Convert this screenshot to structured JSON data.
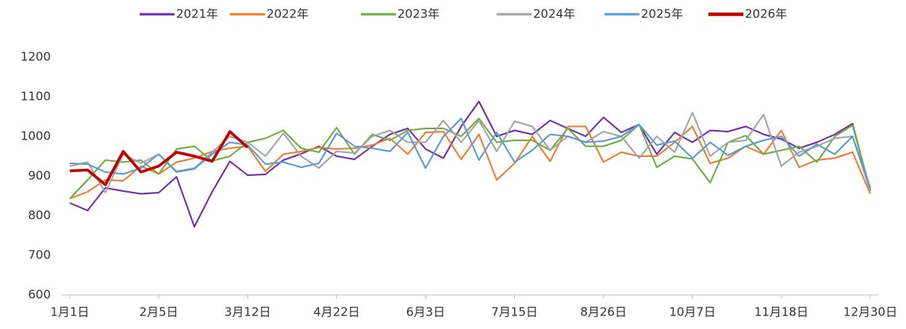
{
  "chart_data": {
    "type": "line",
    "categories": [
      "1月1日",
      null,
      null,
      null,
      null,
      "2月5日",
      null,
      null,
      null,
      null,
      "3月12日",
      null,
      null,
      null,
      null,
      "4月22日",
      null,
      null,
      null,
      null,
      "6月3日",
      null,
      null,
      null,
      null,
      "7月15日",
      null,
      null,
      null,
      null,
      "8月26日",
      null,
      null,
      null,
      null,
      "10月7日",
      null,
      null,
      null,
      null,
      "11月18日",
      null,
      null,
      null,
      null,
      "12月30日"
    ],
    "ylim": [
      600,
      1200
    ],
    "yticks": [
      600,
      700,
      800,
      900,
      1000,
      1100,
      1200
    ],
    "legend": "top",
    "series": [
      {
        "name": "2021年",
        "color": "#7030a0",
        "values": [
          832,
          813,
          870,
          862,
          855,
          858,
          898,
          772,
          860,
          937,
          902,
          904,
          940,
          956,
          975,
          950,
          942,
          975,
          1005,
          1020,
          968,
          945,
          1025,
          1088,
          1000,
          1015,
          1005,
          1040,
          1020,
          1000,
          1048,
          1010,
          1030,
          955,
          1010,
          985,
          1015,
          1012,
          1025,
          1005,
          993,
          970,
          985,
          1005,
          1032,
          862
        ]
      },
      {
        "name": "2022年",
        "color": "#ed7d31",
        "values": [
          843,
          860,
          890,
          888,
          925,
          905,
          935,
          945,
          962,
          970,
          975,
          912,
          955,
          962,
          972,
          968,
          970,
          978,
          995,
          955,
          1010,
          1012,
          942,
          1005,
          890,
          932,
          1000,
          937,
          1025,
          1025,
          935,
          960,
          950,
          950,
          985,
          1025,
          932,
          945,
          975,
          955,
          1015,
          922,
          940,
          945,
          960,
          855
        ]
      },
      {
        "name": "2023年",
        "color": "#70ad47",
        "values": [
          843,
          890,
          940,
          935,
          940,
          905,
          968,
          975,
          938,
          950,
          985,
          995,
          1015,
          970,
          960,
          1022,
          955,
          1005,
          990,
          1015,
          1020,
          1020,
          1000,
          1045,
          985,
          990,
          990,
          965,
          1020,
          975,
          975,
          990,
          1030,
          922,
          950,
          943,
          883,
          985,
          1002,
          955,
          965,
          975,
          935,
          1000,
          1028,
          865
        ]
      },
      {
        "name": "2024年",
        "color": "#a5a5a5",
        "values": [
          925,
          935,
          858,
          955,
          932,
          955,
          912,
          920,
          960,
          1000,
          985,
          950,
          1008,
          950,
          920,
          962,
          958,
          1000,
          1015,
          985,
          985,
          1040,
          985,
          1040,
          962,
          1038,
          1025,
          965,
          1000,
          985,
          1012,
          1000,
          945,
          1000,
          960,
          1060,
          950,
          985,
          990,
          1055,
          925,
          960,
          975,
          995,
          1000,
          862
        ]
      },
      {
        "name": "2025年",
        "color": "#5b9bd5",
        "values": [
          932,
          930,
          910,
          905,
          920,
          955,
          910,
          918,
          955,
          985,
          978,
          930,
          935,
          922,
          932,
          1008,
          975,
          970,
          962,
          1010,
          920,
          1000,
          1045,
          940,
          1010,
          935,
          965,
          1005,
          1000,
          985,
          988,
          1000,
          1030,
          978,
          988,
          945,
          985,
          952,
          975,
          990,
          1000,
          950,
          980,
          955,
          1000,
          870
        ]
      },
      {
        "name": "2026年",
        "color": "#c00000",
        "values": [
          913,
          915,
          878,
          962,
          910,
          925,
          960,
          950,
          937,
          1012,
          972,
          null,
          null,
          null,
          null,
          null,
          null,
          null,
          null,
          null,
          null,
          null,
          null,
          null,
          null,
          null,
          null,
          null,
          null,
          null,
          null,
          null,
          null,
          null,
          null,
          null,
          null,
          null,
          null,
          null,
          null,
          null,
          null,
          null,
          null,
          null
        ]
      }
    ]
  }
}
